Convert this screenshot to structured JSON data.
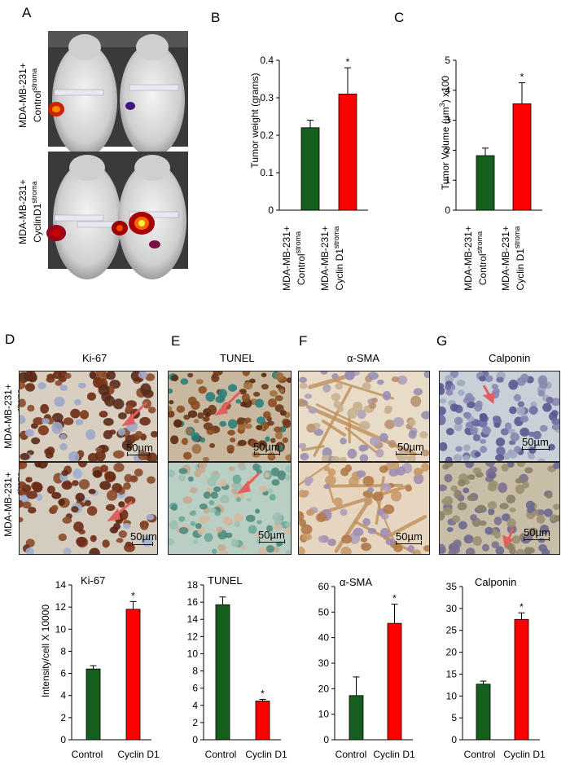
{
  "panels": {
    "A": "A",
    "B": "B",
    "C": "C",
    "D": "D",
    "E": "E",
    "F": "F",
    "G": "G"
  },
  "group_labels": {
    "control_line1": "MDA-MB-231+",
    "control_line2": "Control",
    "control_sup": "stroma",
    "cyclin_line1": "MDA-MB-231+",
    "cyclin_line2_a": "CyclinD1",
    "cyclin_line2_b": "Cyclin D1",
    "cyclin_sup": "stroma"
  },
  "stain_titles": {
    "ki67": "Ki-67",
    "tunel": "TUNEL",
    "sma": "α-SMA",
    "calponin": "Calponin"
  },
  "scale_bar_label": "50µm",
  "colors": {
    "control": "#15601f",
    "cyclin": "#ff0000"
  },
  "chart_data": [
    {
      "id": "B",
      "type": "bar",
      "ylabel": "Tumor weight (grams)",
      "yticks": [
        "0",
        "0.1",
        "0.2",
        "0.3",
        "0.4"
      ],
      "ylim": [
        0,
        0.4
      ],
      "categories": [
        "Control",
        "Cyclin D1"
      ],
      "values": [
        0.22,
        0.31
      ],
      "errors": [
        0.02,
        0.07
      ],
      "significance": [
        "",
        "*"
      ]
    },
    {
      "id": "C",
      "type": "bar",
      "ylabel": "Tumor Volume (µm³) x100",
      "yticks": [
        "0",
        "1",
        "2",
        "3",
        "4",
        "5"
      ],
      "ylim": [
        0,
        5
      ],
      "categories": [
        "Control",
        "Cyclin D1"
      ],
      "values": [
        1.82,
        3.55
      ],
      "errors": [
        0.25,
        0.7
      ],
      "significance": [
        "",
        "*"
      ]
    },
    {
      "id": "Ki-67",
      "type": "bar",
      "title": "Ki-67",
      "ylabel": "Intensity/cell X 10000",
      "yticks": [
        "0",
        "2",
        "4",
        "6",
        "8",
        "10",
        "12",
        "14"
      ],
      "ylim": [
        0,
        14
      ],
      "categories": [
        "Control",
        "Cyclin D1"
      ],
      "values": [
        6.4,
        11.8
      ],
      "errors": [
        0.3,
        0.7
      ],
      "significance": [
        "",
        "*"
      ]
    },
    {
      "id": "TUNEL",
      "type": "bar",
      "title": "TUNEL",
      "yticks": [
        "0",
        "2",
        "4",
        "6",
        "8",
        "10",
        "12",
        "14",
        "16",
        "18"
      ],
      "ylim": [
        0,
        18
      ],
      "categories": [
        "Control",
        "Cyclin D1"
      ],
      "values": [
        15.7,
        4.5
      ],
      "errors": [
        0.9,
        0.2
      ],
      "significance": [
        "",
        "*"
      ]
    },
    {
      "id": "a-SMA",
      "type": "bar",
      "title": "α-SMA",
      "yticks": [
        "0",
        "10",
        "20",
        "30",
        "40",
        "50",
        "60"
      ],
      "ylim": [
        0,
        60
      ],
      "categories": [
        "Control",
        "Cyclin D1"
      ],
      "values": [
        17.3,
        45.6
      ],
      "errors": [
        7.3,
        7.5
      ],
      "significance": [
        "",
        "*"
      ]
    },
    {
      "id": "Calponin",
      "type": "bar",
      "title": "Calponin",
      "yticks": [
        "0",
        "5",
        "10",
        "15",
        "20",
        "25",
        "30",
        "35"
      ],
      "ylim": [
        0,
        35
      ],
      "categories": [
        "Control",
        "Cyclin D1"
      ],
      "values": [
        12.7,
        27.5
      ],
      "errors": [
        0.7,
        1.5
      ],
      "significance": [
        "",
        "*"
      ]
    }
  ]
}
